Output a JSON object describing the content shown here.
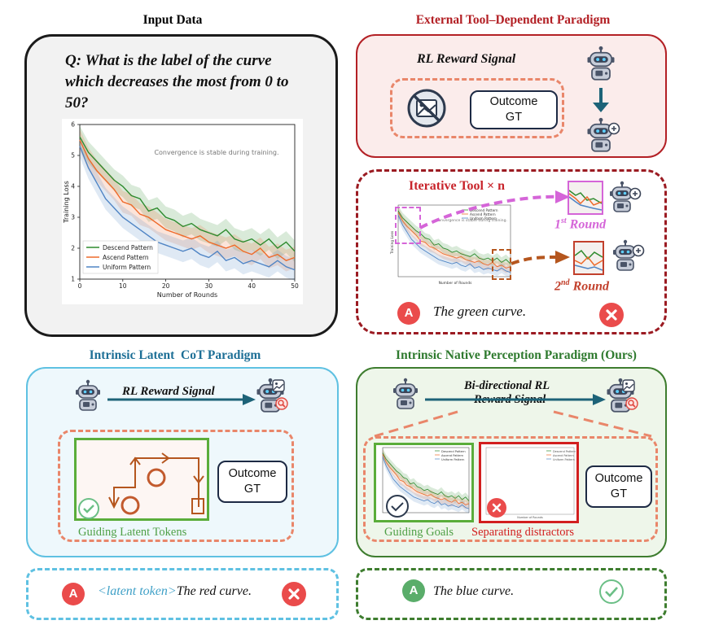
{
  "input_panel": {
    "title": "Input Data",
    "question": "Q: What is the label of the curve which decreases the most from 0 to 50?",
    "chart": {
      "annotation": "Convergence is stable during training.",
      "xlabel": "Number of Rounds",
      "ylabel": "Training Loss",
      "xticks": [
        "0",
        "10",
        "20",
        "30",
        "40",
        "50"
      ],
      "yticks": [
        "1",
        "2",
        "3",
        "4",
        "5",
        "6"
      ],
      "legend": [
        "Descend Pattern",
        "Ascend Pattern",
        "Uniform Pattern"
      ],
      "colors": {
        "descend": "#2e8b2e",
        "ascend": "#ee6a2a",
        "uniform": "#4f84c4"
      }
    }
  },
  "chart_data": {
    "type": "line",
    "xlabel": "Number of Rounds",
    "ylabel": "Training Loss",
    "xlim": [
      0,
      50
    ],
    "ylim": [
      1,
      6
    ],
    "x": [
      0,
      2,
      4,
      6,
      8,
      10,
      12,
      14,
      16,
      18,
      20,
      22,
      24,
      26,
      28,
      30,
      32,
      34,
      36,
      38,
      40,
      42,
      44,
      46,
      48,
      50
    ],
    "series": [
      {
        "name": "Descend Pattern",
        "values": [
          5.6,
          5.1,
          4.8,
          4.5,
          4.2,
          4.0,
          3.7,
          3.6,
          3.2,
          3.3,
          3.0,
          2.9,
          2.7,
          2.8,
          2.6,
          2.5,
          2.4,
          2.6,
          2.3,
          2.2,
          2.3,
          2.1,
          2.3,
          2.0,
          2.2,
          1.9
        ]
      },
      {
        "name": "Ascend Pattern",
        "values": [
          5.5,
          4.9,
          4.5,
          4.2,
          3.9,
          3.5,
          3.4,
          3.1,
          3.0,
          2.8,
          2.6,
          2.5,
          2.4,
          2.3,
          2.4,
          2.2,
          2.1,
          2.0,
          2.1,
          1.9,
          1.8,
          2.0,
          1.7,
          1.8,
          1.6,
          1.7
        ]
      },
      {
        "name": "Uniform Pattern",
        "values": [
          5.3,
          4.6,
          4.1,
          3.6,
          3.3,
          3.0,
          2.8,
          2.6,
          2.4,
          2.2,
          2.1,
          2.0,
          1.9,
          2.0,
          1.8,
          1.7,
          1.9,
          1.6,
          1.7,
          1.5,
          1.6,
          1.5,
          1.4,
          1.6,
          1.4,
          1.3
        ]
      }
    ],
    "annotations": [
      "Convergence is stable during training."
    ],
    "legend_position": "lower-left",
    "grid": false
  },
  "external_panel": {
    "title": "External Tool–Dependent Paradigm",
    "reward_label": "RL Reward Signal",
    "outcome": [
      "Outcome",
      "GT"
    ],
    "iterative_label": "Iterative Tool × n",
    "round1": "1",
    "round1_sup": "st",
    "round1_suffix": " Round",
    "round2": "2",
    "round2_sup": "nd",
    "round2_suffix": " Round",
    "badge": "A",
    "answer": "The green curve.",
    "mini_legend": [
      "Descend Pattern",
      "Ascend Pattern",
      "Uniform Pattern"
    ],
    "mini_annotation": "Convergence is stable during training.",
    "mini_xlabel": "Number of Rounds",
    "mini_ylabel": "Training Loss"
  },
  "latent_panel": {
    "title": "Intrinsic Latent  CoT Paradigm",
    "reward_label": "RL Reward Signal",
    "outcome": [
      "Outcome",
      "GT"
    ],
    "caption": "Guiding Latent Tokens",
    "badge": "A",
    "latent_token": "<latent token>",
    "answer": "The red curve."
  },
  "native_panel": {
    "title": "Intrinsic Native Perception Paradigm (Ours)",
    "reward_label_1": "Bi-directional RL",
    "reward_label_2": "Reward Signal",
    "outcome": [
      "Outcome",
      "GT"
    ],
    "caption_goals": "Guiding Goals",
    "caption_distractors": "Separating distractors",
    "badge": "A",
    "answer": "The blue curve.",
    "mini_legend": [
      "Descend Pattern",
      "Ascend Pattern",
      "Uniform Pattern"
    ],
    "distractor_legend": [
      "Descend Pattern",
      "Ascend Pattern",
      "Uniform Pattern"
    ],
    "distractor_xlabel": "Number of Rounds"
  },
  "colors": {
    "red": "#b32025",
    "blue_title": "#1d6f96",
    "green_title": "#2e7a2e",
    "salmon": "#e9866a",
    "cyan": "#5fc1e2",
    "dark_green": "#3e7d2f",
    "latent_blue": "#3fa0c7",
    "badge_red": "#ea4b4b",
    "badge_green": "#5aad6a",
    "check_green": "#6bbf86",
    "navy": "#1d2a44",
    "teal_arrow": "#1d6378",
    "magenta": "#d565d8",
    "orange_brown": "#b5561e"
  }
}
